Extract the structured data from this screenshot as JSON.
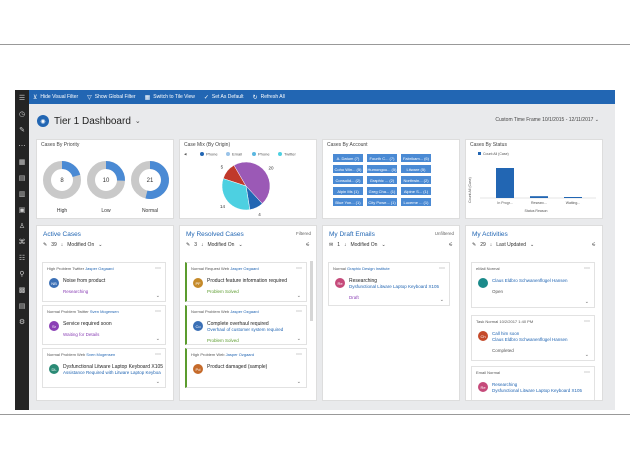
{
  "command_bar": {
    "hide_visual_filter": "Hide Visual Filter",
    "show_global_filter": "Show Global Filter",
    "switch_tile_view": "Switch to Tile View",
    "set_as_default": "Set As Default",
    "refresh_all": "Refresh All"
  },
  "header": {
    "title": "Tier 1 Dashboard",
    "time_frame": "Custom Time Frame 10/1/2015 - 12/11/2017"
  },
  "charts": {
    "priority": {
      "title": "Cases By Priority",
      "labels": [
        "High",
        "Low",
        "Normal"
      ]
    },
    "origin": {
      "title": "Case Mix (By Origin)",
      "legend": [
        "Phone",
        "Email",
        "Phone",
        "Twitter"
      ]
    },
    "account": {
      "title": "Cases By Account",
      "items": [
        "A. Datum (7)",
        "Fourth C... (7)",
        "Fabrikam... (6)",
        "Coho Win... (5)",
        "Humongou... (5)",
        "Litware (5)",
        "Consolid... (2)",
        "Graphic ... (2)",
        "Northwin... (2)",
        "Alpin Ms (1)",
        "Greg Cha... (1)",
        "Alpine S... (1)",
        "Blue Yon... (1)",
        "City Powe... (1)",
        "Lucerne ... (1)"
      ]
    },
    "status": {
      "title": "Cases By Status",
      "legend": "Count:All (Case)",
      "ylabel": "Count:All (Case)",
      "xlabel": "Status Reason",
      "ticks": [
        "In Progr...",
        "Researc...",
        "Waiting..."
      ]
    }
  },
  "chart_data": [
    {
      "type": "pie",
      "title": "Cases By Priority",
      "categories": [
        "High",
        "Low",
        "Normal"
      ],
      "values": [
        8,
        10,
        21
      ]
    },
    {
      "type": "pie",
      "title": "Case Mix (By Origin)",
      "categories": [
        "Phone",
        "Email",
        "Phone",
        "Twitter"
      ],
      "values": [
        20,
        4,
        5,
        14
      ]
    },
    {
      "type": "bar",
      "title": "Cases By Status",
      "categories": [
        "In Progr...",
        "Researc...",
        "Waiting..."
      ],
      "values": [
        33,
        2,
        1
      ],
      "xlabel": "Status Reason",
      "ylabel": "Count:All (Case)"
    }
  ],
  "streams": {
    "active": {
      "title": "Active Cases",
      "count": "39",
      "sort": "Modified On",
      "cards": [
        {
          "tags": [
            "High",
            "Problem",
            "Twitter"
          ],
          "owner": "Jasper Ozgaard",
          "initials": "NB",
          "title": "Noise from product",
          "sub": "",
          "status": "Researching",
          "avatar_color": "#3a6fb5"
        },
        {
          "tags": [
            "Normal",
            "Problem",
            "Twitter"
          ],
          "owner": "Sven Mogensen",
          "initials": "Sr",
          "title": "Service required soon",
          "sub": "",
          "status": "Waiting for Details",
          "avatar_color": "#8a3fb5"
        },
        {
          "tags": [
            "Normal",
            "Problem",
            "Web"
          ],
          "owner": "Sven Mogensen",
          "initials": "DL",
          "title": "Dysfunctional Litware Laptop Keyboard X105",
          "sub": "Assistance Required with Litware Laptop Keyboa",
          "status": "",
          "avatar_color": "#2a8a75"
        }
      ]
    },
    "resolved": {
      "title": "My Resolved Cases",
      "filter": "Filtered",
      "count": "3",
      "sort": "Modified On",
      "cards": [
        {
          "tags": [
            "Normal",
            "Request",
            "Web"
          ],
          "owner": "Jasper Ozgaard",
          "initials": "PF",
          "title": "Product feature information required",
          "sub": "",
          "status": "Problem Solved",
          "avatar_color": "#c58a2a"
        },
        {
          "tags": [
            "Normal",
            "Problem",
            "Web"
          ],
          "owner": "Jasper Ozgaard",
          "initials": "Co",
          "title": "Complete overhaul required",
          "sub": "Overhaul of customer system required",
          "status": "Problem Solved",
          "avatar_color": "#3a6fb5"
        },
        {
          "tags": [
            "High",
            "Problem",
            "Web"
          ],
          "owner": "Jasper Ozgaard",
          "initials": "Pd",
          "title": "Product damaged (sample)",
          "sub": "",
          "status": "",
          "avatar_color": "#c56a2a"
        }
      ]
    },
    "drafts": {
      "title": "My Draft Emails",
      "filter": "Unfiltered",
      "count": "1",
      "sort": "Modified On",
      "card": {
        "tags": [
          "Normal"
        ],
        "owner": "Graphic Design Institute",
        "initials": "Re",
        "title": "Researching",
        "sub": "Dysfunctional Litware Laptop Keyboard X105",
        "status": "Draft",
        "avatar_color": "#c54a7a"
      }
    },
    "activities": {
      "title": "My Activities",
      "count": "29",
      "sort": "Last Updated",
      "cards": [
        {
          "tags": [
            "eMail",
            "Normal"
          ],
          "initials": "",
          "title": "Claus Eldbro Schwanenflügel Hansen",
          "sub": "",
          "status": "Open",
          "date": "",
          "avatar_color": "#1a8a8a"
        },
        {
          "tags": [
            "Task",
            "Normal"
          ],
          "initials": "Ch",
          "title": "Call him soon",
          "sub": "Claus Eldbro Schwanenflügel Hansen",
          "status": "Completed",
          "date": "10/2/2017 1:40 PM",
          "avatar_color": "#c54a2a"
        },
        {
          "tags": [
            "Email",
            "Normal"
          ],
          "initials": "Re",
          "title": "Researching",
          "sub": "Dysfunctional Litware Laptop Keyboard X105",
          "status": "Open",
          "date": "",
          "avatar_color": "#c54a7a"
        }
      ]
    }
  },
  "colors": {
    "accent": "#2266b3",
    "nav": "#242424",
    "canvas": "#e9eaec"
  }
}
